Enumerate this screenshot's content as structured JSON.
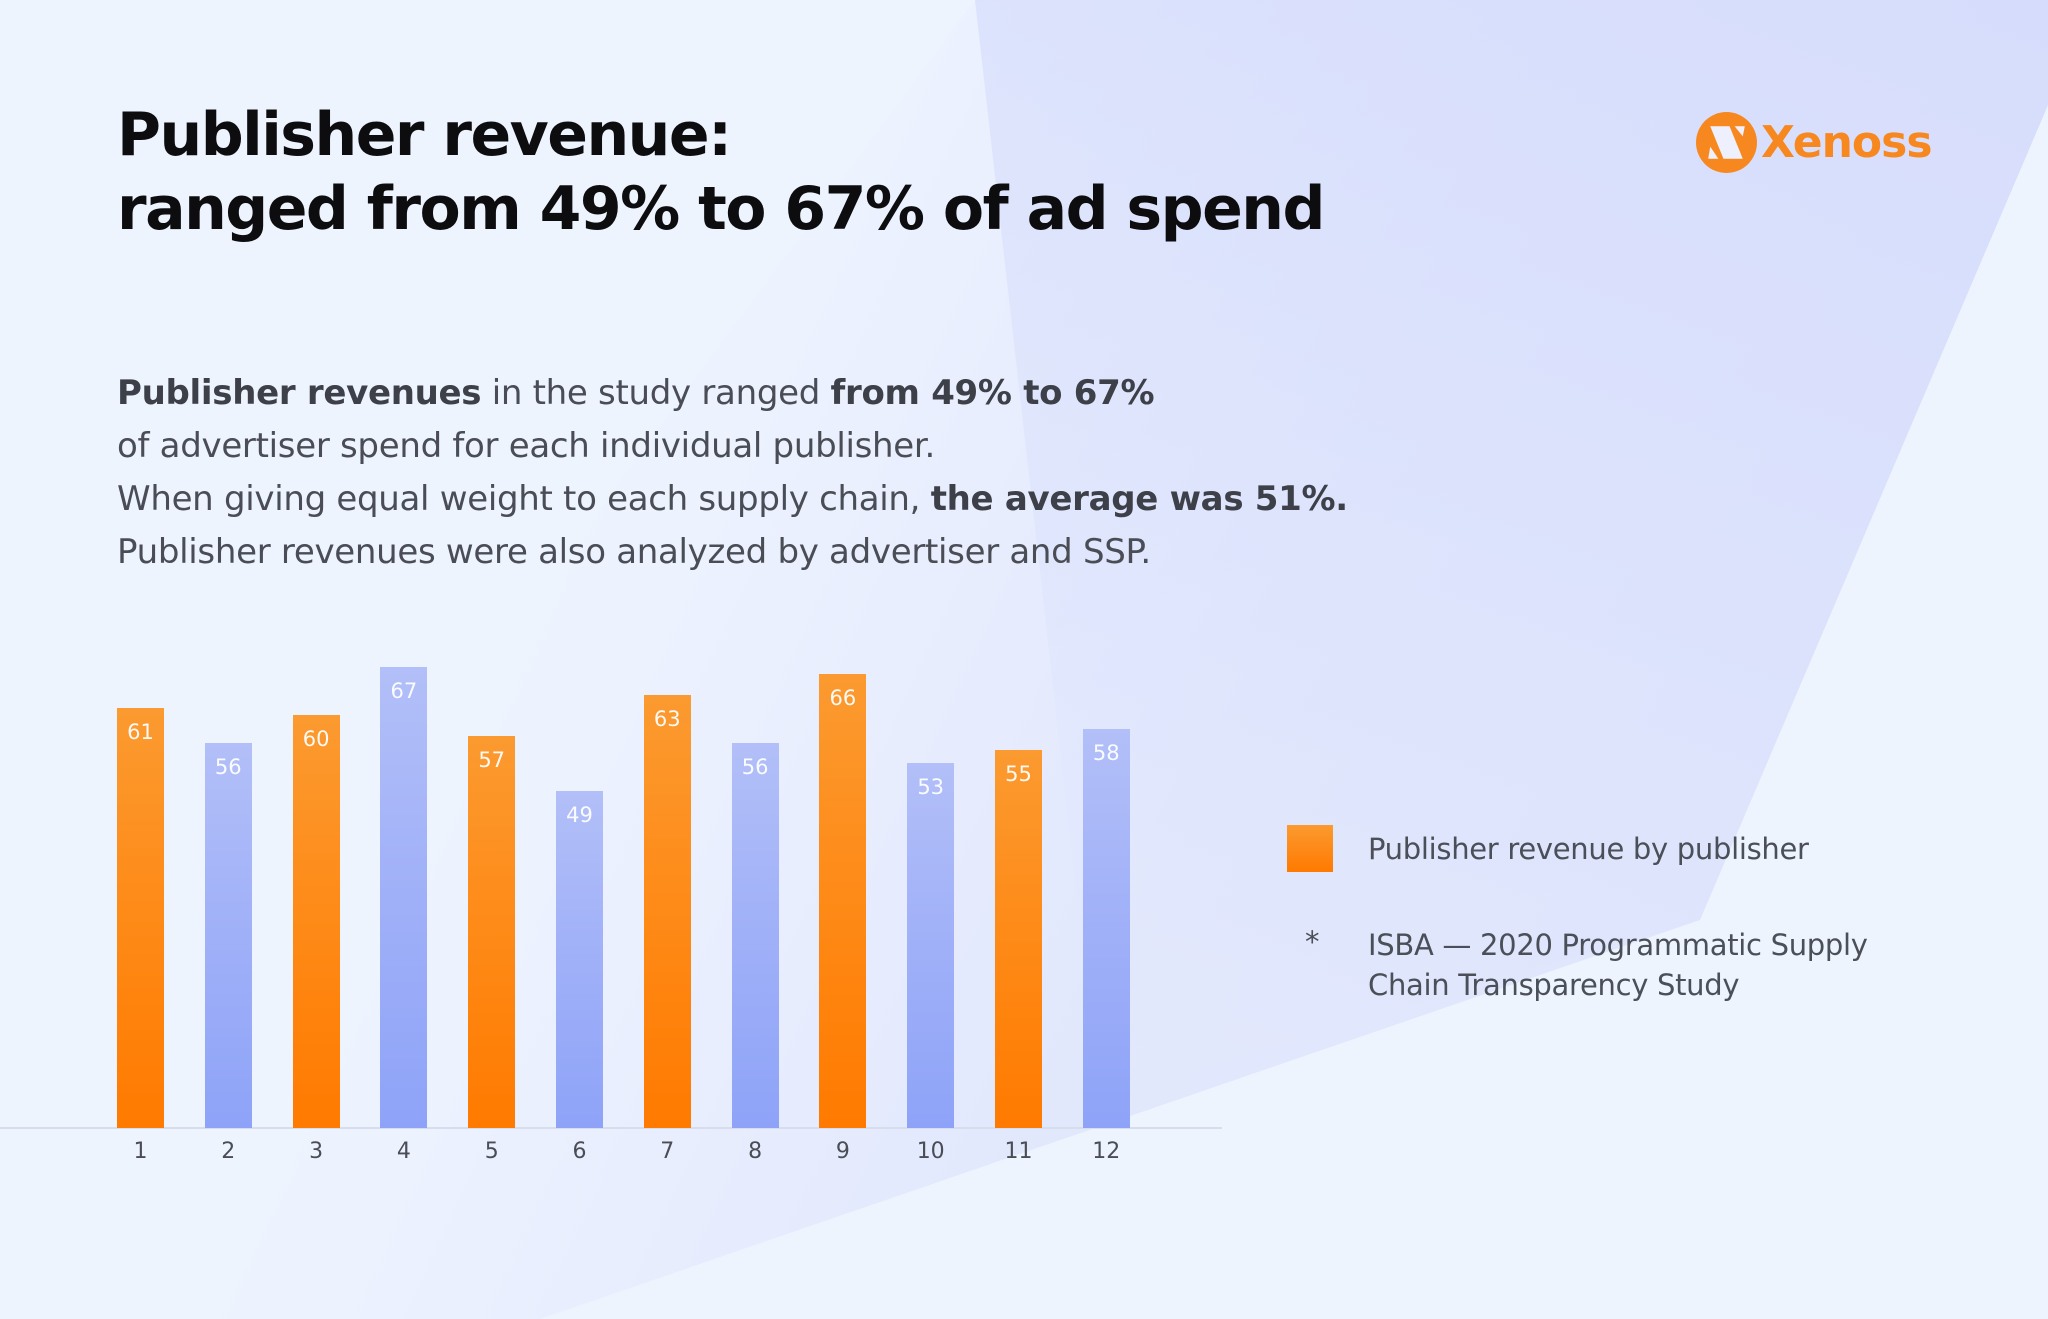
{
  "header": {
    "title_line1": "Publisher revenue:",
    "title_line2": "ranged from 49% to 67% of ad spend"
  },
  "logo": {
    "text": "Xenoss",
    "color": "#f7881f",
    "icon": "xenoss-x-circle-icon"
  },
  "body": {
    "line1": [
      {
        "text": "Publisher revenues",
        "bold": true
      },
      {
        "text": " in the study ranged ",
        "bold": false
      },
      {
        "text": "from 49% to 67%",
        "bold": true
      }
    ],
    "line2": [
      {
        "text": "of advertiser spend for each individual publisher.",
        "bold": false
      }
    ],
    "line3": [
      {
        "text": "When giving equal weight to each supply chain, ",
        "bold": false
      },
      {
        "text": "the average was 51%.",
        "bold": true
      }
    ],
    "line4": [
      {
        "text": "Publisher revenues were also analyzed by advertiser and SSP.",
        "bold": false
      }
    ]
  },
  "legend": {
    "series_label": "Publisher revenue by publisher",
    "series_color": "#ff8a1a"
  },
  "footnote": {
    "mark": "*",
    "line1": "ISBA — 2020 Programmatic Supply",
    "line2": "Chain Transparency Study"
  },
  "colors": {
    "orange_top": "#fb9a30",
    "orange_bottom": "#ff7a00",
    "blue_top": "#b2bff8",
    "blue_bottom": "#8ea3f8",
    "background": "#eef4fe"
  },
  "chart_data": {
    "type": "bar",
    "title": "Publisher revenue: ranged from 49% to 67% of ad spend",
    "xlabel": "",
    "ylabel": "",
    "categories": [
      "1",
      "2",
      "3",
      "4",
      "5",
      "6",
      "7",
      "8",
      "9",
      "10",
      "11",
      "12"
    ],
    "values": [
      61,
      56,
      60,
      67,
      57,
      49,
      63,
      56,
      66,
      53,
      55,
      58
    ],
    "bar_colors": [
      "orange",
      "blue",
      "orange",
      "blue",
      "orange",
      "blue",
      "orange",
      "blue",
      "orange",
      "blue",
      "orange",
      "blue"
    ],
    "series": [
      {
        "name": "Publisher revenue by publisher",
        "values": [
          61,
          56,
          60,
          67,
          57,
          49,
          63,
          56,
          66,
          53,
          55,
          58
        ]
      }
    ],
    "data_labels": true,
    "ylim": [
      0,
      70
    ],
    "grid": false,
    "legend_position": "right",
    "annotations": [
      "* ISBA — 2020 Programmatic Supply Chain Transparency Study"
    ]
  }
}
